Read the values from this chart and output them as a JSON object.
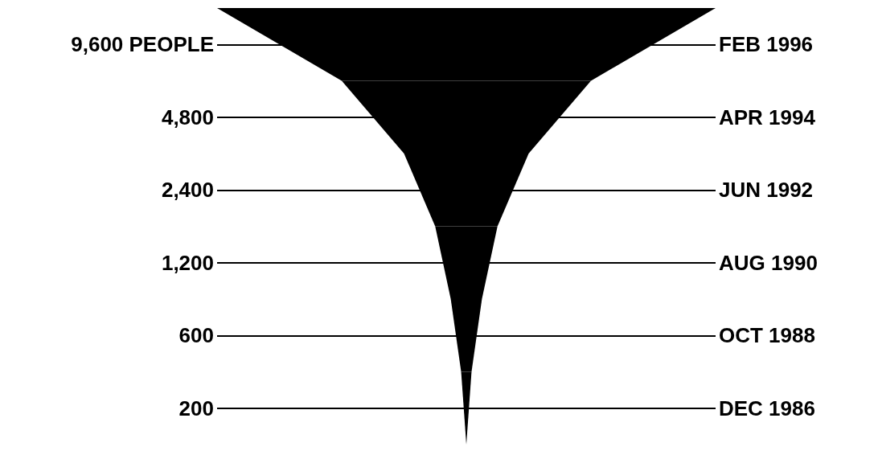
{
  "chart_data": {
    "type": "other",
    "categories": [
      "FEB 1996",
      "APR 1994",
      "JUN 1992",
      "AUG 1990",
      "OCT 1988",
      "DEC 1986"
    ],
    "values": [
      9600,
      4800,
      2400,
      1200,
      600,
      200
    ],
    "value_labels": [
      "9,600 PEOPLE",
      "4,800",
      "2,400",
      "1,200",
      "600",
      "200"
    ],
    "color": "#000000"
  }
}
